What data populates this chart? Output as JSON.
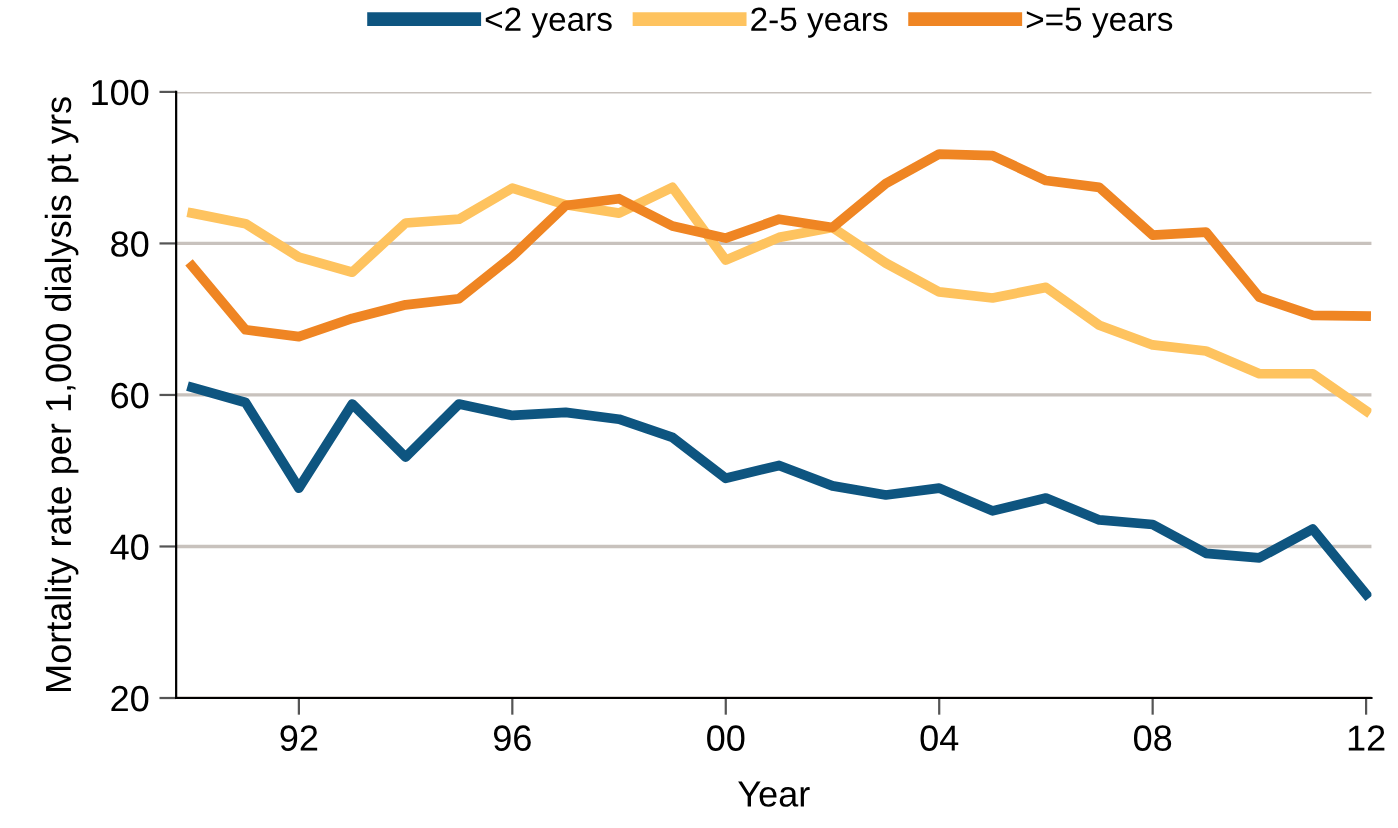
{
  "chart_data": {
    "type": "line",
    "xlabel": "Year",
    "ylabel": "Mortality rate per 1,000 dialysis pt yrs",
    "x": [
      1990,
      1991,
      1992,
      1993,
      1994,
      1995,
      1996,
      1997,
      1998,
      1999,
      2000,
      2001,
      2002,
      2003,
      2004,
      2005,
      2006,
      2007,
      2008,
      2009,
      2010,
      2011,
      2012
    ],
    "series": [
      {
        "name": "<2 years",
        "color": "#0e5580",
        "values": [
          61,
          59,
          47.7,
          58.8,
          51.8,
          58.8,
          57.3,
          57.7,
          56.8,
          54.4,
          49,
          50.7,
          48,
          46.8,
          47.7,
          44.7,
          46.4,
          43.5,
          42.9,
          39.1,
          38.5,
          42.3,
          33.7
        ]
      },
      {
        "name": "2-5 years",
        "color": "#fec35f",
        "values": [
          84,
          82.6,
          78.2,
          76.2,
          82.7,
          83.2,
          87.3,
          85.1,
          84.0,
          87.4,
          77.8,
          80.8,
          82.1,
          77.4,
          73.6,
          72.8,
          74.2,
          69.2,
          66.6,
          65.8,
          62.8,
          62.8,
          57.9
        ]
      },
      {
        "name": ">=5 years",
        "color": "#ef8523",
        "values": [
          77,
          68.6,
          67.7,
          70.1,
          71.9,
          72.7,
          78.3,
          85.0,
          85.9,
          82.3,
          80.7,
          83.2,
          82.1,
          87.9,
          91.8,
          91.6,
          88.3,
          87.4,
          81.1,
          81.5,
          72.9,
          70.5,
          70.4
        ]
      }
    ],
    "xlim": [
      1989.7,
      2012.1
    ],
    "xticks": [
      {
        "value": 1992,
        "label": "92"
      },
      {
        "value": 1996,
        "label": "96"
      },
      {
        "value": 2000,
        "label": "00"
      },
      {
        "value": 2004,
        "label": "04"
      },
      {
        "value": 2008,
        "label": "08"
      },
      {
        "value": 2012,
        "label": "12"
      }
    ],
    "ylim": [
      20,
      100
    ],
    "yticks": [
      20,
      40,
      60,
      80,
      100
    ],
    "grid": "y",
    "legend": "top",
    "marker": "none",
    "line_style": "solid"
  }
}
